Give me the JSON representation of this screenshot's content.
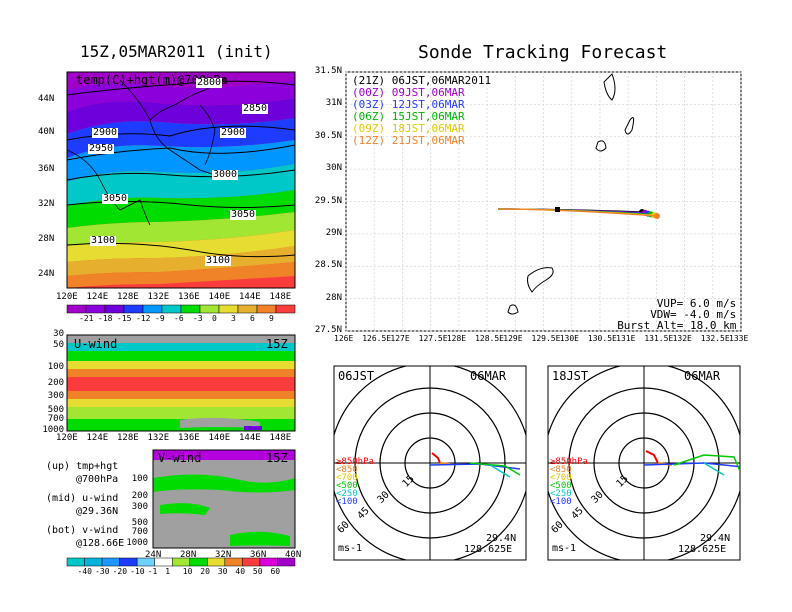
{
  "left_title": "15Z,05MAR2011 (init)",
  "main_title": "Sonde Tracking Forecast",
  "map_panel": {
    "title": "temp(C)+hgt(m)@700hPa",
    "lat_ticks": [
      "44N",
      "40N",
      "36N",
      "32N",
      "28N",
      "24N"
    ],
    "lon_ticks": [
      "120E",
      "124E",
      "128E",
      "132E",
      "136E",
      "140E",
      "144E",
      "148E"
    ],
    "contour_labels": [
      "2800",
      "2850",
      "2900",
      "2900",
      "2950",
      "3000",
      "3050",
      "3050",
      "3100",
      "3100"
    ],
    "colorbar_labels": [
      "-21",
      "-18",
      "-15",
      "-12",
      "-9",
      "-6",
      "-3",
      "0",
      "3",
      "6",
      "9"
    ],
    "colors": [
      "#a000c8",
      "#8c00dc",
      "#6e00dc",
      "#1e3cff",
      "#0096ff",
      "#00c8c8",
      "#00dc00",
      "#a0e632",
      "#e6dc32",
      "#e6af2d",
      "#f08228",
      "#fa3c3c"
    ]
  },
  "u_panel": {
    "title": "U-wind",
    "time": "15Z",
    "p_ticks": [
      "30",
      "50",
      "100",
      "200",
      "300",
      "500",
      "700",
      "1000"
    ],
    "lon_ticks": [
      "120E",
      "124E",
      "128E",
      "132E",
      "136E",
      "140E",
      "144E",
      "148E"
    ]
  },
  "v_panel": {
    "title": "V-wind",
    "time": "15Z",
    "p_ticks": [
      "100",
      "200",
      "300",
      "500",
      "700",
      "1000"
    ],
    "lat_ticks": [
      "24N",
      "28N",
      "32N",
      "36N",
      "40N"
    ]
  },
  "notes": [
    {
      "label": "(up) tmp+hgt",
      "sub": "@700hPa"
    },
    {
      "label": "(mid) u-wind",
      "sub": "@29.36N"
    },
    {
      "label": "(bot) v-wind",
      "sub": "@128.66E"
    }
  ],
  "wind_colorbar_labels": [
    "-40",
    "-30",
    "-20",
    "-10",
    "-1",
    "1",
    "10",
    "20",
    "30",
    "40",
    "50",
    "60"
  ],
  "track_panel": {
    "lat_ticks": [
      "31.5N",
      "31N",
      "30.5N",
      "30N",
      "29.5N",
      "29N",
      "28.5N",
      "28N",
      "27.5N"
    ],
    "lon_ticks": [
      "126E",
      "126.5E",
      "127E",
      "127.5E",
      "128E",
      "128.5E",
      "129E",
      "129.5E",
      "130E",
      "130.5E",
      "131E",
      "131.5E",
      "132E",
      "132.5E",
      "133E"
    ],
    "legend": [
      {
        "label": "(21Z) 06JST,06MAR2011",
        "color": "#000000"
      },
      {
        "label": "(00Z) 09JST,06MAR",
        "color": "#a000c8"
      },
      {
        "label": "(03Z) 12JST,06MAR",
        "color": "#1e3cff"
      },
      {
        "label": "(06Z) 15JST,06MAR",
        "color": "#00b400"
      },
      {
        "label": "(09Z) 18JST,06MAR",
        "color": "#e6c800"
      },
      {
        "label": "(12Z) 21JST,06MAR",
        "color": "#f08228"
      }
    ],
    "params": [
      "VUP= 6.0 m/s",
      "VDW= -4.0 m/s",
      "Burst Alt= 18.0 km"
    ]
  },
  "hodographs": [
    {
      "time": "06JST",
      "date": "06MAR",
      "unit": "ms-1",
      "lat": "29.4N",
      "lon": "128.625E",
      "rings": [
        "15",
        "30",
        "45",
        "60"
      ],
      "levels": [
        {
          "label": "≥850hPa",
          "color": "#ff0000"
        },
        {
          "label": "<850",
          "color": "#f08228"
        },
        {
          "label": "<700",
          "color": "#e6c800"
        },
        {
          "label": "<500",
          "color": "#00c800"
        },
        {
          "label": "<250",
          "color": "#00c8c8"
        },
        {
          "label": "<100",
          "color": "#1e3cff"
        }
      ]
    },
    {
      "time": "18JST",
      "date": "06MAR",
      "unit": "ms-1",
      "lat": "29.4N",
      "lon": "128.625E",
      "rings": [
        "15",
        "30",
        "45",
        "60"
      ],
      "levels": [
        {
          "label": "≥850hPa",
          "color": "#ff0000"
        },
        {
          "label": "<850",
          "color": "#f08228"
        },
        {
          "label": "<700",
          "color": "#e6c800"
        },
        {
          "label": "<500",
          "color": "#00c800"
        },
        {
          "label": "<250",
          "color": "#00c8c8"
        },
        {
          "label": "<100",
          "color": "#1e3cff"
        }
      ]
    }
  ]
}
